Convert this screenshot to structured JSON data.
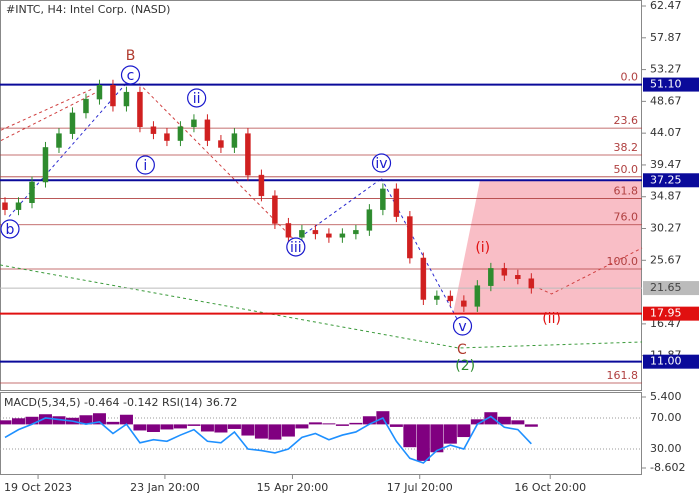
{
  "chart_data": [
    {
      "type": "candlestick",
      "title": "#INTC, H4:  Intel Corp. (NASD)",
      "open": [
        34,
        33,
        34,
        37,
        42,
        44,
        47,
        49,
        51,
        48,
        50,
        45,
        44,
        43,
        45,
        46,
        43,
        42,
        44,
        38,
        35,
        31,
        29,
        30,
        29.5,
        29,
        29.5,
        30,
        33,
        36,
        32,
        26,
        20,
        20.5,
        19.8,
        19,
        22,
        24.5,
        23.5,
        23
      ],
      "high": [
        34.8,
        34.8,
        37.8,
        42.8,
        44.8,
        47.8,
        49.8,
        51.8,
        51.8,
        50.8,
        50.8,
        45.8,
        44.8,
        45.8,
        46.8,
        46.8,
        43.8,
        44.8,
        44.8,
        38.8,
        35.8,
        31.8,
        30.8,
        30.8,
        30.3,
        30.3,
        30.8,
        33.8,
        36.8,
        36.8,
        32.8,
        26.8,
        21.3,
        21.3,
        20.6,
        22.8,
        25.3,
        25.3,
        24.3,
        23.8
      ],
      "low": [
        32.2,
        32.2,
        33.2,
        36.2,
        41.2,
        43.2,
        46.2,
        48.2,
        47.2,
        47.2,
        44.2,
        43.2,
        42.2,
        42.2,
        44.2,
        42.2,
        41.2,
        41.2,
        37.2,
        34.2,
        30.2,
        28.2,
        28.2,
        28.7,
        28.2,
        28.2,
        28.7,
        29.2,
        32.2,
        31.2,
        25.2,
        19.2,
        19.2,
        19,
        18.2,
        18.2,
        21.2,
        22.7,
        22.2,
        20.85
      ],
      "close": [
        33,
        34,
        37,
        42,
        44,
        47,
        49,
        51,
        48,
        50,
        45,
        44,
        43,
        45,
        46,
        43,
        42,
        44,
        38,
        35,
        31,
        29,
        30,
        29.5,
        29,
        29.5,
        30,
        33,
        36,
        32,
        26,
        20,
        20.5,
        19.8,
        19,
        22,
        24.5,
        23.5,
        23,
        21.65
      ],
      "up_color": "#2e8b2e",
      "down_color": "#d02020",
      "xlim": [
        -0.37,
        47.2
      ],
      "xticks": [
        {
          "value": 2.45,
          "label": "19 Oct 2023"
        },
        {
          "value": 11.85,
          "label": "23 Jan 20:00"
        },
        {
          "value": 21.3,
          "label": "15 Apr 20:00"
        },
        {
          "value": 30.73,
          "label": "17 Jul 20:00"
        },
        {
          "value": 40.4,
          "label": "16 Oct 20:00"
        }
      ],
      "ylim": [
        6.9,
        63.34
      ],
      "yticks": [
        62.47,
        57.87,
        53.27,
        48.67,
        44.07,
        39.47,
        34.87,
        30.27,
        25.67,
        16.47,
        11.87
      ],
      "levels": [
        {
          "value": 51.1,
          "label": "51.10",
          "color": "#0a0a9a"
        },
        {
          "value": 37.25,
          "label": "37.25",
          "color": "#0a0a9a"
        },
        {
          "value": 17.95,
          "label": "17.95",
          "color": "#e01010"
        },
        {
          "value": 11,
          "label": "11.00",
          "color": "#0a0a9a"
        },
        {
          "value": 21.65,
          "label": "21.65",
          "color": "#bbbbbb"
        }
      ],
      "fibonacci": {
        "from": 51.1,
        "to": 24.41,
        "color": "#b04040",
        "ratios": [
          {
            "value": 0,
            "label": "0.0"
          },
          23.6,
          38.2,
          {
            "value": 50,
            "label": "50.0"
          },
          61.8,
          {
            "value": 76,
            "label": "76.0"
          },
          {
            "value": 100,
            "label": "100.0"
          },
          161.8
        ]
      },
      "target_zone": {
        "color": "#f8b7c0",
        "x": [
          33.2,
          35.2,
          47.2,
          47.2
        ],
        "y": [
          17.95,
          37.25,
          37.25,
          17.95
        ]
      },
      "lines": [
        {
          "color": "#d04040",
          "x": [
            -0.3,
            6.5
          ],
          "y": [
            44.5,
            50.5
          ]
        },
        {
          "color": "#d04040",
          "x": [
            -0.3,
            6.8
          ],
          "y": [
            43,
            50
          ]
        },
        {
          "color": "#2a2ad0",
          "x": [
            0.3,
            9.3
          ],
          "y": [
            32,
            52
          ]
        },
        {
          "color": "#d04040",
          "x": [
            9.3,
            21.5
          ],
          "y": [
            52.5,
            28.5
          ]
        },
        {
          "color": "#2a2ad0",
          "x": [
            21.5,
            27.9
          ],
          "y": [
            28.5,
            37.5
          ]
        },
        {
          "color": "#2a2ad0",
          "x": [
            27.9,
            33.6
          ],
          "y": [
            37.5,
            16.8
          ]
        },
        {
          "color": "#d04040",
          "x": [
            39.6,
            40.5,
            47.2
          ],
          "y": [
            21.6,
            20.8,
            27.45
          ]
        },
        {
          "color": "#3a9a3a",
          "x": [
            -0.37,
            33.6,
            47.2
          ],
          "y": [
            25,
            12.98,
            13.85
          ]
        }
      ],
      "annotations": [
        {
          "text": "B",
          "color": "#b03a2e",
          "circled": false,
          "x": 9.3,
          "y": 55.38
        },
        {
          "text": "c",
          "color": "#1a1acd",
          "circled": true,
          "x": 9.3,
          "y": 52.49
        },
        {
          "text": "b",
          "color": "#1a1acd",
          "circled": true,
          "x": 0.37,
          "y": 30.2
        },
        {
          "text": "ii",
          "color": "#1a1acd",
          "circled": true,
          "x": 14.2,
          "y": 49.16
        },
        {
          "text": "i",
          "color": "#1a1acd",
          "circled": true,
          "x": 10.4,
          "y": 39.46
        },
        {
          "text": "iii",
          "color": "#1a1acd",
          "circled": true,
          "x": 21.55,
          "y": 27.6
        },
        {
          "text": "iv",
          "color": "#1a1acd",
          "circled": true,
          "x": 27.9,
          "y": 39.75
        },
        {
          "text": "v",
          "color": "#1a1acd",
          "circled": true,
          "x": 33.9,
          "y": 16.16
        },
        {
          "text": "C",
          "color": "#b03a2e",
          "circled": false,
          "x": 33.85,
          "y": 12.8
        },
        {
          "text": "(2)",
          "color": "#2e8b2e",
          "circled": false,
          "x": 34.1,
          "y": 10.5
        },
        {
          "text": "(i)",
          "color": "#e01010",
          "circled": false,
          "x": 35.4,
          "y": 27.6
        },
        {
          "text": "(ii)",
          "color": "#e01010",
          "circled": false,
          "x": 40.5,
          "y": 17.32
        }
      ]
    },
    {
      "type": "macd_rsi",
      "title": "MACD(5,34,5) -0.464 -0.142 RSI(14) 36.72",
      "macd": [
        0.8,
        1.2,
        1.5,
        2,
        1.6,
        1.3,
        1.8,
        2.2,
        0.5,
        1.9,
        -1.2,
        -1.5,
        -1.0,
        -0.8,
        -0.3,
        -1.4,
        -1.6,
        -0.9,
        -2.2,
        -2.8,
        -3.0,
        -2.4,
        -0.8,
        0.4,
        0.2,
        -0.3,
        0.3,
        1.6,
        2.6,
        -0.5,
        -4.5,
        -7.2,
        -5.5,
        -3.8,
        -2.5,
        1.0,
        2.4,
        1.5,
        0.8,
        -0.464
      ],
      "macd_color": "#800080",
      "rsi": [
        45,
        55,
        62,
        70,
        68,
        66,
        62,
        65,
        50,
        62,
        38,
        42,
        40,
        48,
        55,
        40,
        38,
        52,
        30,
        28,
        25,
        30,
        45,
        50,
        42,
        48,
        52,
        62,
        70,
        40,
        18,
        12,
        28,
        35,
        30,
        62,
        72,
        58,
        55,
        36.72
      ],
      "rsi_color": "#1e90ff",
      "ylim": [
        -8.602,
        5.4
      ],
      "yticks": [
        {
          "value": 5.4,
          "label": "5.400"
        },
        -8.602
      ],
      "y2lim": [
        5.5,
        97.1
      ],
      "y2ticks": [
        {
          "value": 70,
          "label": "70.00"
        },
        {
          "value": 30,
          "label": "30.00"
        }
      ]
    }
  ]
}
